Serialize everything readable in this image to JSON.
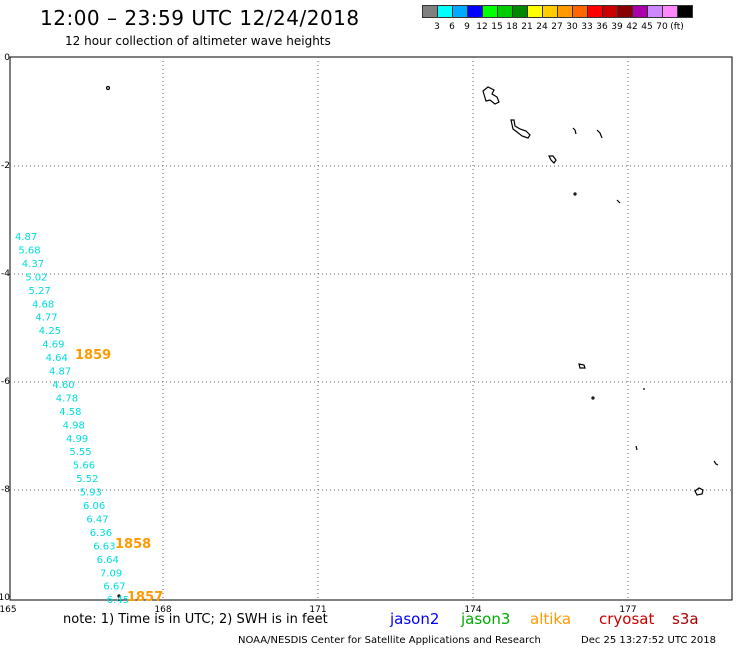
{
  "header": {
    "title": "12:00 – 23:59 UTC 12/24/2018",
    "subtitle": "12 hour collection of altimeter wave heights"
  },
  "legend": {
    "colors": [
      "#808080",
      "#00ffff",
      "#00aaff",
      "#0000ff",
      "#00ff00",
      "#00cc00",
      "#008800",
      "#ffff00",
      "#ffcc00",
      "#ff9900",
      "#ff6600",
      "#ff0000",
      "#cc0000",
      "#880000",
      "#aa00aa",
      "#cc88ff",
      "#ff88ff",
      "#000000"
    ],
    "labels": [
      "3",
      "6",
      "9",
      "12",
      "15",
      "18",
      "21",
      "24",
      "27",
      "30",
      "33",
      "36",
      "39",
      "42",
      "45",
      "70",
      "(ft)"
    ]
  },
  "map": {
    "lon_ticks": [
      "165",
      "168",
      "171",
      "174",
      "177"
    ],
    "lat_ticks": [
      "0",
      "-2",
      "-4",
      "-6",
      "-8",
      "-10"
    ],
    "swh_color": "#00dddd",
    "time_color": "#ff9900",
    "swh_labels": [
      "4.87",
      "5.68",
      "4.37",
      "5.02",
      "5.27",
      "4.68",
      "4.77",
      "4.25",
      "4.69",
      "4.64",
      "4.87",
      "4.60",
      "4.78",
      "4.58",
      "4.98",
      "4.99",
      "5.55",
      "5.66",
      "5.52",
      "5.93",
      "6.06",
      "6.47",
      "6.36",
      "6.63",
      "6.64",
      "7.09",
      "6.67",
      "6.45"
    ],
    "time_labels": [
      "1859",
      "1858",
      "1857"
    ]
  },
  "footer": {
    "note": "note: 1) Time is in UTC; 2) SWH is in feet",
    "satellites": [
      {
        "name": "jason2",
        "color": "#0000ff"
      },
      {
        "name": "jason3",
        "color": "#00aa00"
      },
      {
        "name": "altika",
        "color": "#ff9900"
      },
      {
        "name": "cryosat",
        "color": "#cc0000"
      },
      {
        "name": "s3a",
        "color": "#aa0000"
      }
    ],
    "credit": "NOAA/NESDIS Center for Satellite Applications and Research",
    "timestamp": "Dec 25 13:27:52 UTC 2018"
  }
}
